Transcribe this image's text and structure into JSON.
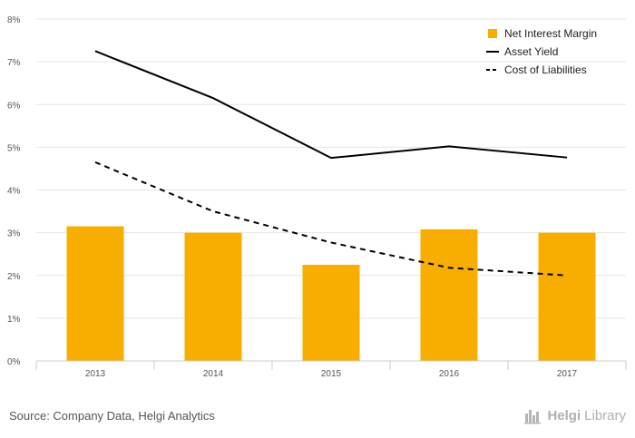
{
  "chart_data": {
    "type": "bar",
    "categories": [
      "2013",
      "2014",
      "2015",
      "2016",
      "2017"
    ],
    "series": [
      {
        "name": "Net Interest Margin",
        "kind": "bar",
        "style": "solid",
        "color": "#f7ae00",
        "values": [
          3.15,
          3.0,
          2.25,
          3.08,
          3.0
        ]
      },
      {
        "name": "Asset Yield",
        "kind": "line",
        "style": "solid",
        "color": "#000000",
        "values": [
          7.25,
          6.15,
          4.75,
          5.02,
          4.76
        ]
      },
      {
        "name": "Cost of Liabilities",
        "kind": "line",
        "style": "dashed",
        "color": "#000000",
        "values": [
          4.65,
          3.5,
          2.77,
          2.18,
          2.0
        ]
      }
    ],
    "yticks": [
      "0%",
      "1%",
      "2%",
      "3%",
      "4%",
      "5%",
      "6%",
      "7%",
      "8%"
    ],
    "ylim": [
      0,
      8
    ],
    "grid": true,
    "legend_position": "top-right"
  },
  "source": "Source: Company Data, Helgi Analytics",
  "brand": {
    "part1": "Helgi",
    "part2": "Library",
    "icon": "helgi-library-logo-icon"
  }
}
